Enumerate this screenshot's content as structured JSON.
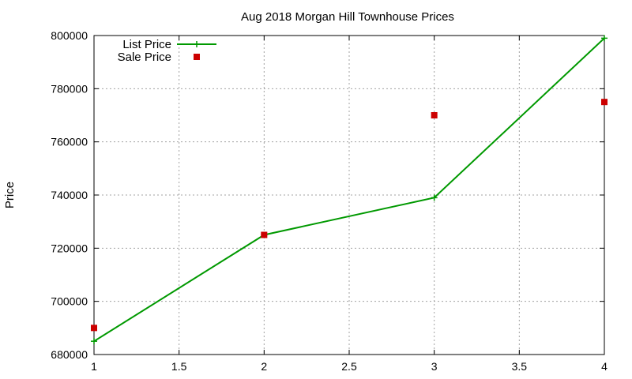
{
  "chart_data": {
    "type": "line",
    "title": "Aug 2018 Morgan Hill Townhouse Prices",
    "xlabel": "",
    "ylabel": "Price",
    "xlim": [
      1,
      4
    ],
    "ylim": [
      680000,
      800000
    ],
    "x_ticks": [
      "1",
      "1.5",
      "2",
      "2.5",
      "3",
      "3.5",
      "4"
    ],
    "y_ticks": [
      "680000",
      "700000",
      "720000",
      "740000",
      "760000",
      "780000",
      "800000"
    ],
    "grid": true,
    "legend_position": "top-left",
    "series": [
      {
        "name": "List Price",
        "style": "linespoints",
        "color": "#009900",
        "x": [
          1,
          2,
          3,
          4
        ],
        "y": [
          685000,
          725000,
          739000,
          799000
        ]
      },
      {
        "name": "Sale Price",
        "style": "points",
        "color": "#cc0000",
        "x": [
          1,
          2,
          3,
          4
        ],
        "y": [
          690000,
          725000,
          770000,
          775000
        ]
      }
    ]
  }
}
